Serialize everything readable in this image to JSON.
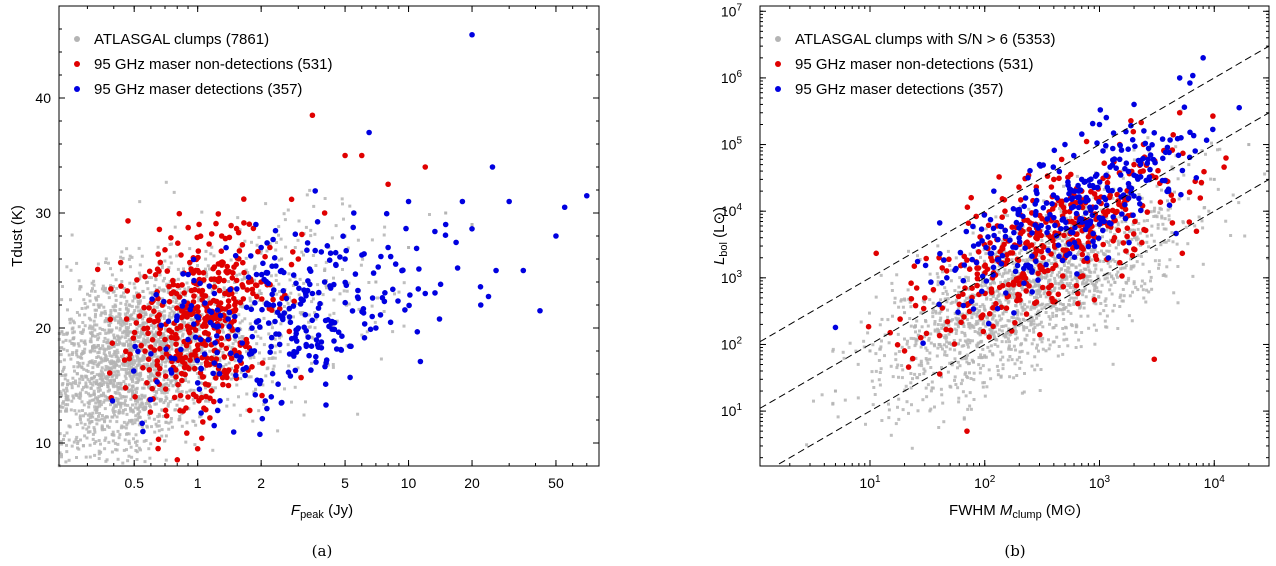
{
  "figure": {
    "panels": [
      {
        "id": "a",
        "caption": "(a)",
        "xlabel_main": "F",
        "xlabel_sub": "peak",
        "xlabel_unit": " (Jy)",
        "ylabel": "Tdust (K)"
      },
      {
        "id": "b",
        "caption": "(b)",
        "xlabel_main": "FWHM ",
        "xlabel_ital": "M",
        "xlabel_sub": "clump",
        "xlabel_unit": " (M⊙)",
        "ylabel_main": "L",
        "ylabel_sub": "bol",
        "ylabel_unit": " (L⊙)"
      }
    ]
  },
  "chart_data": [
    {
      "type": "scatter",
      "panel": "a",
      "xscale": "log",
      "yscale": "linear",
      "xlim": [
        0.22,
        80
      ],
      "ylim": [
        8,
        48
      ],
      "xticks": [
        0.5,
        1,
        2,
        5,
        10,
        20,
        50
      ],
      "xtick_labels": [
        "0.5",
        "1",
        "2",
        "5",
        "10",
        "20",
        "50"
      ],
      "yticks": [
        10,
        20,
        30,
        40
      ],
      "ytick_labels": [
        "10",
        "20",
        "30",
        "40"
      ],
      "legend_position": "top-left",
      "series": [
        {
          "name": "ATLASGAL clumps (7861)",
          "color": "#b4b4b4",
          "marker": "square",
          "distribution": "dense background cloud; peak near Fpeak 0.4 Jy, Tdust 16 K",
          "x": [
            0.35,
            0.4,
            0.45,
            0.5,
            0.6,
            0.7,
            0.8,
            1.0,
            1.2,
            1.5,
            2.0,
            2.5,
            3.0,
            4.0,
            5.0,
            7.0,
            10,
            15,
            20,
            30
          ],
          "y": [
            15,
            17,
            14,
            19,
            16,
            22,
            18,
            21,
            24,
            19,
            23,
            26,
            20,
            25,
            28,
            24,
            27,
            30,
            29,
            31
          ]
        },
        {
          "name": "95 GHz maser non-detections (531)",
          "color": "#e00000",
          "marker": "circle",
          "x": [
            0.65,
            0.7,
            0.75,
            0.8,
            0.85,
            0.9,
            1.0,
            1.0,
            1.1,
            1.2,
            1.3,
            1.4,
            1.5,
            1.7,
            2.0,
            2.2,
            2.5,
            3.0,
            3.5,
            4.0,
            5.0,
            6.0,
            8.0,
            12
          ],
          "y": [
            16,
            19,
            23,
            18,
            21,
            14,
            9.5,
            25,
            17,
            20,
            28,
            15,
            22,
            19,
            24,
            27,
            21,
            26,
            38.5,
            30,
            35,
            35,
            32.5,
            34
          ]
        },
        {
          "name": "95 GHz maser detections (357)",
          "color": "#0000e0",
          "marker": "circle",
          "x": [
            0.55,
            0.9,
            1.2,
            1.5,
            1.8,
            2.0,
            2.5,
            3.0,
            3.5,
            4.0,
            5.0,
            5.5,
            6.5,
            7.0,
            8.0,
            10,
            12,
            15,
            18,
            20,
            22,
            25,
            26,
            30,
            35,
            42,
            50,
            55,
            70
          ],
          "y": [
            11,
            19,
            23,
            21,
            18,
            27,
            25,
            20,
            23,
            24,
            26,
            30,
            37,
            20,
            27,
            31,
            23,
            29,
            31,
            45.5,
            22,
            34,
            25,
            31,
            25,
            21.5,
            28,
            30.5,
            31.5
          ]
        }
      ]
    },
    {
      "type": "scatter",
      "panel": "b",
      "xscale": "log",
      "yscale": "log",
      "xlim": [
        1.1,
        30000
      ],
      "ylim": [
        1.5,
        12000000
      ],
      "xticks": [
        10,
        100,
        1000,
        10000
      ],
      "xtick_labels": [
        [
          "10",
          "1"
        ],
        [
          "10",
          "2"
        ],
        [
          "10",
          "3"
        ],
        [
          "10",
          "4"
        ]
      ],
      "yticks": [
        10,
        100,
        1000,
        10000,
        100000,
        1000000,
        10000000
      ],
      "ytick_labels": [
        [
          "10",
          "1"
        ],
        [
          "10",
          "2"
        ],
        [
          "10",
          "3"
        ],
        [
          "10",
          "4"
        ],
        [
          "10",
          "5"
        ],
        [
          "10",
          "6"
        ],
        [
          "10",
          "7"
        ]
      ],
      "legend_position": "top-left",
      "reference_lines": [
        {
          "style": "dashed",
          "slope": 1,
          "L_over_M": 100
        },
        {
          "style": "dashed",
          "slope": 1,
          "L_over_M": 10
        },
        {
          "style": "dashed",
          "slope": 1,
          "L_over_M": 1
        }
      ],
      "series": [
        {
          "name": "ATLASGAL clumps with S/N > 6 (5353)",
          "color": "#b4b4b4",
          "marker": "square",
          "distribution": "broad band centered near Mclump 300 Msun, Lbol 1000 Lsun",
          "x": [
            5,
            10,
            20,
            40,
            80,
            150,
            300,
            500,
            800,
            1500,
            3000,
            6000,
            10000,
            20000
          ],
          "y": [
            20,
            80,
            300,
            100,
            500,
            2000,
            1000,
            5000,
            3000,
            20000,
            10000,
            50000,
            30000,
            100000
          ]
        },
        {
          "name": "95 GHz maser non-detections (531)",
          "color": "#e00000",
          "marker": "circle",
          "x": [
            15,
            20,
            30,
            40,
            60,
            70,
            100,
            150,
            200,
            300,
            400,
            500,
            700,
            1000,
            1500,
            2000,
            3000,
            5000,
            7000
          ],
          "y": [
            150,
            80,
            500,
            2000,
            400,
            5,
            1500,
            10000,
            800,
            5000,
            30000,
            2000,
            20000,
            8000,
            100000,
            50000,
            60,
            300000,
            5000
          ]
        },
        {
          "name": "95 GHz maser detections (357)",
          "color": "#0000e0",
          "marker": "circle",
          "x": [
            5,
            40,
            80,
            120,
            200,
            300,
            400,
            500,
            700,
            1000,
            1500,
            2000,
            3000,
            4000,
            5000,
            8000
          ],
          "y": [
            180,
            400,
            3000,
            20000,
            10000,
            50000,
            8000,
            100000,
            30000,
            200000,
            60000,
            400000,
            150000,
            20000,
            1000000,
            2000000
          ]
        }
      ]
    }
  ]
}
